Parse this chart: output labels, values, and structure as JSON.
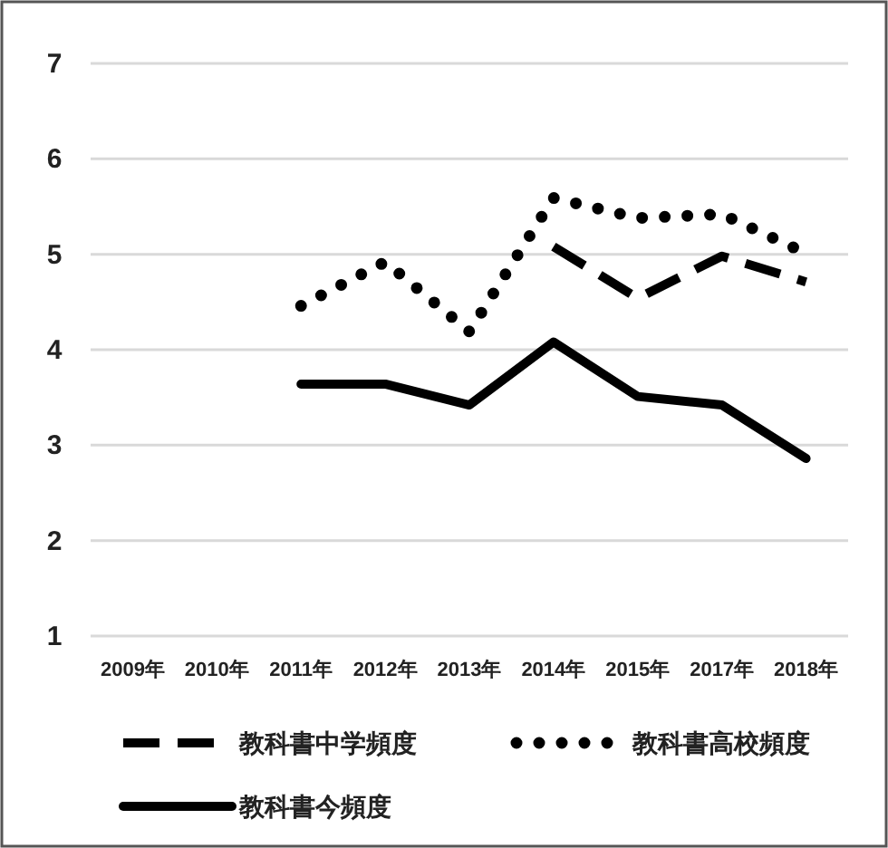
{
  "chart_data": {
    "type": "line",
    "categories": [
      "2009年",
      "2010年",
      "2011年",
      "2012年",
      "2013年",
      "2014年",
      "2015年",
      "2017年",
      "2018年"
    ],
    "series": [
      {
        "name": "教科書中学頻度",
        "color": "#000000",
        "line_style": "dashed",
        "values": [
          null,
          null,
          null,
          null,
          null,
          5.08,
          4.54,
          4.98,
          4.71
        ]
      },
      {
        "name": "教科書高校頻度",
        "color": "#000000",
        "line_style": "dotted",
        "values": [
          null,
          null,
          4.46,
          4.92,
          4.19,
          5.59,
          5.38,
          5.42,
          5.01
        ]
      },
      {
        "name": "教科書今頻度",
        "color": "#000000",
        "line_style": "solid",
        "values": [
          null,
          null,
          3.64,
          3.64,
          3.42,
          4.08,
          3.51,
          3.42,
          2.86
        ]
      }
    ],
    "ylim": [
      1,
      7
    ],
    "yticks": [
      1,
      2,
      3,
      4,
      5,
      6,
      7
    ],
    "grid": "y",
    "legend": "bottom"
  }
}
